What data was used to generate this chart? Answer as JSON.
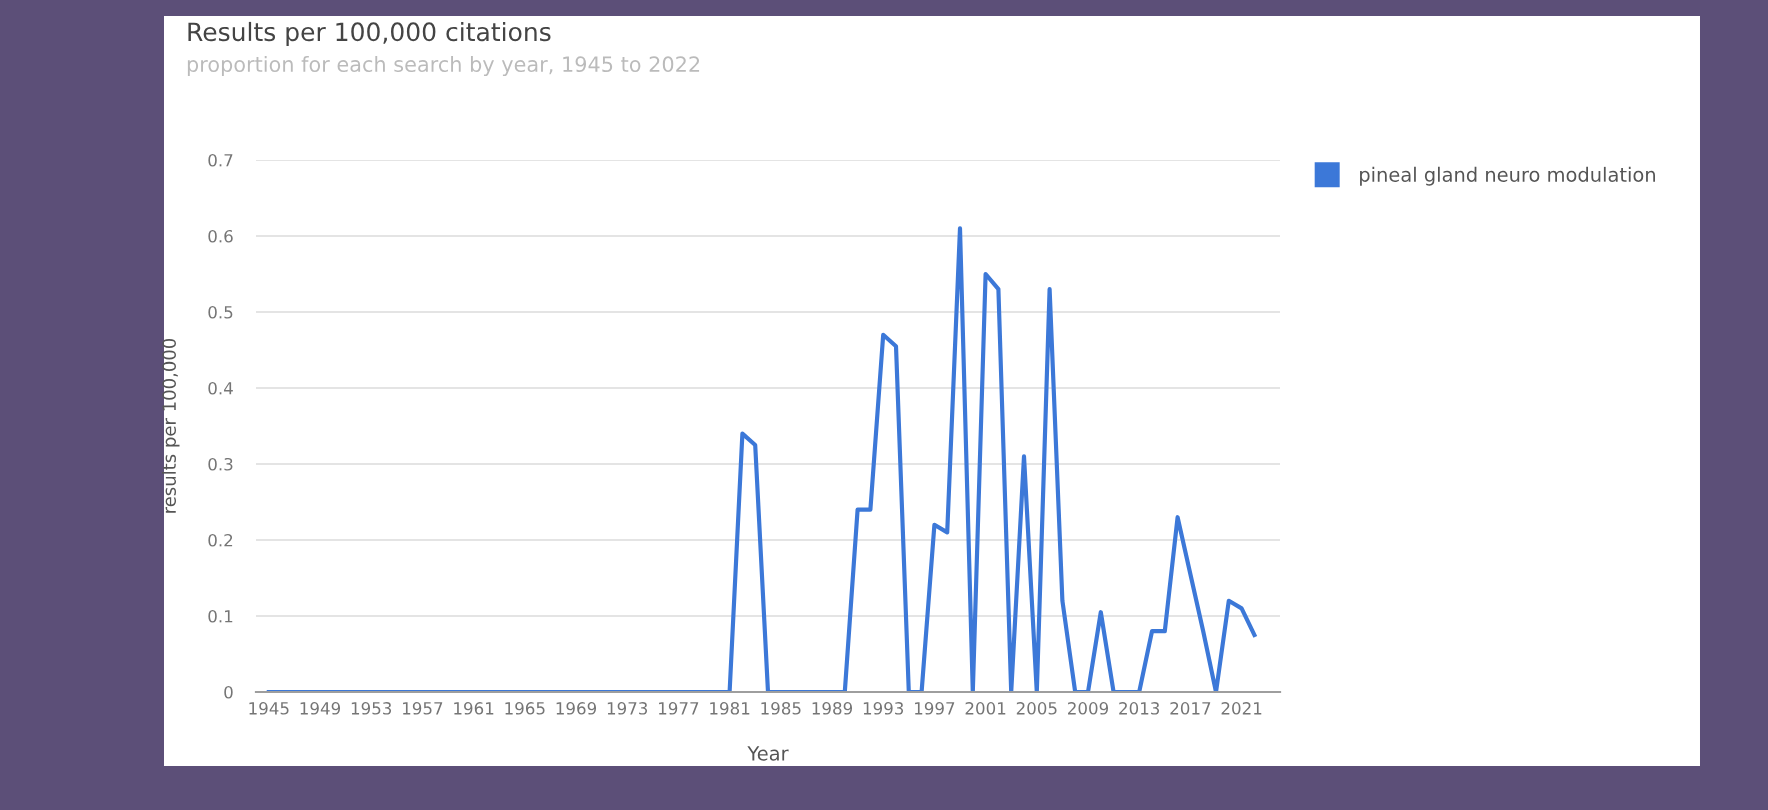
{
  "chart_data": {
    "type": "line",
    "title": "Results per 100,000 citations",
    "subtitle": "proportion for each search by year, 1945 to 2022",
    "xlabel": "Year",
    "ylabel": "results per 100,000",
    "x": [
      1945,
      1946,
      1947,
      1948,
      1949,
      1950,
      1951,
      1952,
      1953,
      1954,
      1955,
      1956,
      1957,
      1958,
      1959,
      1960,
      1961,
      1962,
      1963,
      1964,
      1965,
      1966,
      1967,
      1968,
      1969,
      1970,
      1971,
      1972,
      1973,
      1974,
      1975,
      1976,
      1977,
      1978,
      1979,
      1980,
      1981,
      1982,
      1983,
      1984,
      1985,
      1986,
      1987,
      1988,
      1989,
      1990,
      1991,
      1992,
      1993,
      1994,
      1995,
      1996,
      1997,
      1998,
      1999,
      2000,
      2001,
      2002,
      2003,
      2004,
      2005,
      2006,
      2007,
      2008,
      2009,
      2010,
      2011,
      2012,
      2013,
      2014,
      2015,
      2016,
      2017,
      2018,
      2019,
      2020,
      2021,
      2022
    ],
    "series": [
      {
        "name": "pineal gland neuro modulation",
        "color": "#3c78d8",
        "values": [
          0,
          0,
          0,
          0,
          0,
          0,
          0,
          0,
          0,
          0,
          0,
          0,
          0,
          0,
          0,
          0,
          0,
          0,
          0,
          0,
          0,
          0,
          0,
          0,
          0,
          0,
          0,
          0,
          0,
          0,
          0,
          0,
          0,
          0,
          0,
          0,
          0,
          0.34,
          0.325,
          0,
          0,
          0,
          0,
          0,
          0,
          0,
          0.24,
          0.24,
          0.47,
          0.455,
          0,
          0,
          0.22,
          0.21,
          0.61,
          0,
          0.55,
          0.53,
          0,
          0.31,
          0,
          0.53,
          0.12,
          0,
          0,
          0.105,
          0,
          0,
          0,
          0.08,
          0.08,
          0.23,
          0.155,
          0.08,
          0,
          0.12,
          0.11,
          0.075
        ]
      }
    ],
    "xlim": [
      1944,
      2024
    ],
    "xticks": [
      1945,
      1949,
      1953,
      1957,
      1961,
      1965,
      1969,
      1973,
      1977,
      1981,
      1985,
      1989,
      1993,
      1997,
      2001,
      2005,
      2009,
      2013,
      2017,
      2021
    ],
    "ylim": [
      0,
      0.7
    ],
    "yticks": [
      0,
      0.1,
      0.2,
      0.3,
      0.4,
      0.5,
      0.6,
      0.7
    ],
    "grid": "y",
    "legend": "right",
    "marker": "none",
    "line_style": "solid"
  }
}
